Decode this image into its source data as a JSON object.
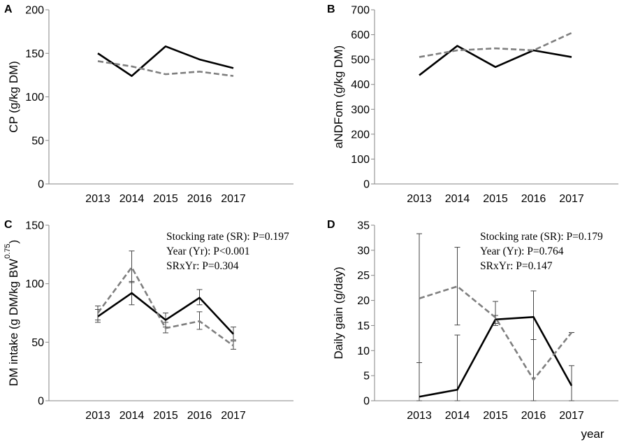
{
  "chart_data": [
    {
      "panel": "A",
      "type": "line",
      "categories": [
        "2013",
        "2014",
        "2015",
        "2016",
        "2017"
      ],
      "ylabel": "CP  (g/kg DM)",
      "xlabel": "",
      "ylim": [
        0,
        200
      ],
      "yticks": [
        0,
        50,
        100,
        150,
        200
      ],
      "series": [
        {
          "name": "solid",
          "color": "#000000",
          "dash": "solid",
          "values": [
            150,
            124,
            158,
            143,
            133
          ]
        },
        {
          "name": "dashed",
          "color": "#7f7f7f",
          "dash": "dashed",
          "values": [
            141,
            135,
            126,
            129,
            124
          ]
        }
      ],
      "annotations": []
    },
    {
      "panel": "B",
      "type": "line",
      "categories": [
        "2013",
        "2014",
        "2015",
        "2016",
        "2017"
      ],
      "ylabel": "aNDFom (g/kg DM)",
      "xlabel": "",
      "ylim": [
        0,
        700
      ],
      "yticks": [
        0,
        100,
        200,
        300,
        400,
        500,
        600,
        700
      ],
      "series": [
        {
          "name": "solid",
          "color": "#000000",
          "dash": "solid",
          "values": [
            437,
            555,
            470,
            537,
            510
          ]
        },
        {
          "name": "dashed",
          "color": "#7f7f7f",
          "dash": "dashed",
          "values": [
            510,
            537,
            545,
            537,
            607
          ]
        }
      ],
      "annotations": []
    },
    {
      "panel": "C",
      "type": "line",
      "categories": [
        "2013",
        "2014",
        "2015",
        "2016",
        "2017"
      ],
      "ylabel": "DM intake  (g DM/kg BW",
      "ylabel_sup": "0.75",
      "ylabel_end": ")",
      "xlabel": "",
      "ylim": [
        0,
        150
      ],
      "yticks": [
        0,
        50,
        100,
        150
      ],
      "series": [
        {
          "name": "solid",
          "color": "#000000",
          "dash": "solid",
          "values": [
            72,
            92,
            69,
            88,
            57
          ],
          "err": [
            [
              67,
              78
            ],
            [
              82,
              102
            ],
            [
              63,
              75
            ],
            [
              82,
              95
            ],
            [
              52,
              63
            ]
          ]
        },
        {
          "name": "dashed",
          "color": "#7f7f7f",
          "dash": "dashed",
          "values": [
            75,
            114,
            62,
            68,
            47
          ],
          "err": [
            [
              69,
              81
            ],
            [
              101,
              128
            ],
            [
              58,
              67
            ],
            [
              61,
              76
            ],
            [
              44,
              51
            ]
          ]
        }
      ],
      "annotations": [
        "Stocking rate (SR): P=0.197",
        "Year (Yr): P<0.001",
        "SRxYr: P=0.304"
      ]
    },
    {
      "panel": "D",
      "type": "line",
      "categories": [
        "2013",
        "2014",
        "2015",
        "2016",
        "2017"
      ],
      "ylabel": "Daily gain (g/day)",
      "xlabel": "year",
      "ylim": [
        0,
        35
      ],
      "yticks": [
        0,
        5,
        10,
        15,
        20,
        25,
        30,
        35
      ],
      "series": [
        {
          "name": "solid",
          "color": "#000000",
          "dash": "solid",
          "values": [
            0.8,
            2.2,
            16.2,
            16.7,
            3.0
          ],
          "err": [
            [
              0,
              7.6
            ],
            [
              0,
              13.1
            ],
            [
              15.4,
              17.0
            ],
            [
              0,
              21.9
            ],
            [
              0,
              7.0
            ]
          ]
        },
        {
          "name": "dashed",
          "color": "#7f7f7f",
          "dash": "dashed",
          "values": [
            20.4,
            22.8,
            16.6,
            4.2,
            13.6
          ],
          "err": [
            [
              7.6,
              33.3
            ],
            [
              15.1,
              30.6
            ],
            [
              15.0,
              19.8
            ],
            [
              0,
              12.2
            ],
            [
              13.6,
              13.6
            ]
          ]
        }
      ],
      "annotations": [
        "Stocking rate (SR): P=0.179",
        "Year (Yr): P=0.764",
        "SRxYr: P=0.147"
      ]
    }
  ]
}
